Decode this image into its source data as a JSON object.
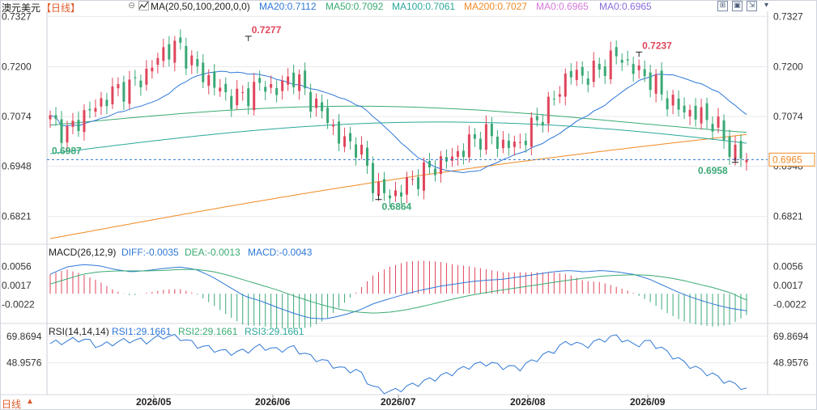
{
  "header": {
    "symbol": "澳元美元",
    "period": "【日线】",
    "period_icon": "cycle-icon",
    "ma_label": "MA(20,50,100,200,0,0)",
    "ma20": "MA20:0.7112",
    "ma50": "MA50:0.7092",
    "ma100": "MA100:0.7061",
    "ma200": "MA200:0.7027",
    "ma_extra1": "MA0:0.6965",
    "ma_extra2": "MA0:0.6965"
  },
  "toolbar_icons": [
    "grid-icon",
    "layout-icon",
    "export-icon"
  ],
  "footer": {
    "label": "日线",
    "icon": "up-triangle-icon"
  },
  "colors": {
    "up": "#e0455b",
    "down": "#3aa876",
    "ma20": "#2f78d6",
    "ma50": "#3aab72",
    "ma100": "#2aa89a",
    "ma200": "#f08a24",
    "price_line": "#2f78d6",
    "grid": "#e9e9ee"
  },
  "chart_data": [
    {
      "type": "candlestick",
      "title": "澳元美元 日线",
      "x_labels": [
        "2026/05",
        "2026/06",
        "2026/07",
        "2026/08",
        "2026/09"
      ],
      "y_ticks": [
        "0.7327",
        "0.7200",
        "0.7074",
        "0.6948",
        "0.6821"
      ],
      "ylim": [
        0.6755,
        0.734
      ],
      "series_ma": [
        {
          "name": "MA20",
          "value": 0.7112
        },
        {
          "name": "MA50",
          "value": 0.7092
        },
        {
          "name": "MA100",
          "value": 0.7061
        },
        {
          "name": "MA200",
          "value": 0.7027
        }
      ],
      "annotations": {
        "high1": "0.7277",
        "high2": "0.7237",
        "low1": "0.6987",
        "low2": "0.6864",
        "low3": "0.6958",
        "last_price": "0.6965"
      },
      "ohlc_anchor_closes": [
        0.7065,
        0.703,
        0.7075,
        0.7105,
        0.714,
        0.715,
        0.7185,
        0.724,
        0.725,
        0.7195,
        0.716,
        0.712,
        0.7125,
        0.7155,
        0.714,
        0.718,
        0.712,
        0.7075,
        0.701,
        0.7,
        0.69,
        0.687,
        0.69,
        0.693,
        0.6955,
        0.6975,
        0.701,
        0.703,
        0.7,
        0.7005,
        0.706,
        0.711,
        0.7185,
        0.7175,
        0.7195,
        0.723,
        0.7195,
        0.717,
        0.712,
        0.709,
        0.708,
        0.706,
        0.699,
        0.6965
      ]
    },
    {
      "type": "macd",
      "label": "MACD(26,12,9)",
      "diff_label": "DIFF:-0.0035",
      "dea_label": "DEA:-0.0013",
      "macd_label": "MACD:-0.0043",
      "y_ticks": [
        "0.0056",
        "0.0017",
        "-0.0022"
      ],
      "ylim": [
        -0.0058,
        0.0072
      ],
      "diff": [
        0.004,
        0.0055,
        0.006,
        0.0058,
        0.005,
        0.0045,
        0.0048,
        0.0052,
        0.0055,
        0.005,
        0.0035,
        0.0015,
        -0.0005,
        -0.0015,
        -0.0028,
        -0.004,
        -0.005,
        -0.0052,
        -0.0045,
        -0.0035,
        -0.002,
        -0.001,
        0.0,
        0.0008,
        0.0015,
        0.002,
        0.0025,
        0.0028,
        0.003,
        0.0035,
        0.004,
        0.0045,
        0.0048,
        0.0045,
        0.0048,
        0.0045,
        0.004,
        0.003,
        0.0015,
        0.0,
        -0.0012,
        -0.0022,
        -0.003,
        -0.0035
      ],
      "dea": [
        0.002,
        0.003,
        0.004,
        0.0045,
        0.0047,
        0.0047,
        0.0047,
        0.0048,
        0.005,
        0.005,
        0.0046,
        0.0038,
        0.0028,
        0.0018,
        0.0008,
        -0.0004,
        -0.0015,
        -0.0025,
        -0.0033,
        -0.0038,
        -0.004,
        -0.0038,
        -0.0033,
        -0.0026,
        -0.0018,
        -0.001,
        -0.0003,
        0.0003,
        0.0008,
        0.0013,
        0.0018,
        0.0023,
        0.0028,
        0.0032,
        0.0036,
        0.0038,
        0.0039,
        0.0038,
        0.0034,
        0.0028,
        0.002,
        0.0012,
        0.0002,
        -0.0013
      ]
    },
    {
      "type": "rsi",
      "label": "RSI(14,14,14)",
      "rsi1_label": "RSI1:29.1661",
      "rsi2_label": "RSI2:29.1661",
      "rsi3_label": "RSI3:29.1661",
      "y_ticks": [
        "69.8694",
        "48.9576"
      ],
      "ylim": [
        24,
        78
      ],
      "values": [
        64,
        66,
        68,
        62,
        65,
        67,
        66,
        70,
        69,
        63,
        60,
        57,
        58,
        62,
        59,
        61,
        54,
        50,
        44,
        43,
        29,
        26,
        30,
        34,
        38,
        42,
        47,
        49,
        46,
        45,
        52,
        58,
        66,
        62,
        67,
        70,
        63,
        66,
        58,
        50,
        44,
        39,
        33,
        29.1661
      ]
    }
  ]
}
